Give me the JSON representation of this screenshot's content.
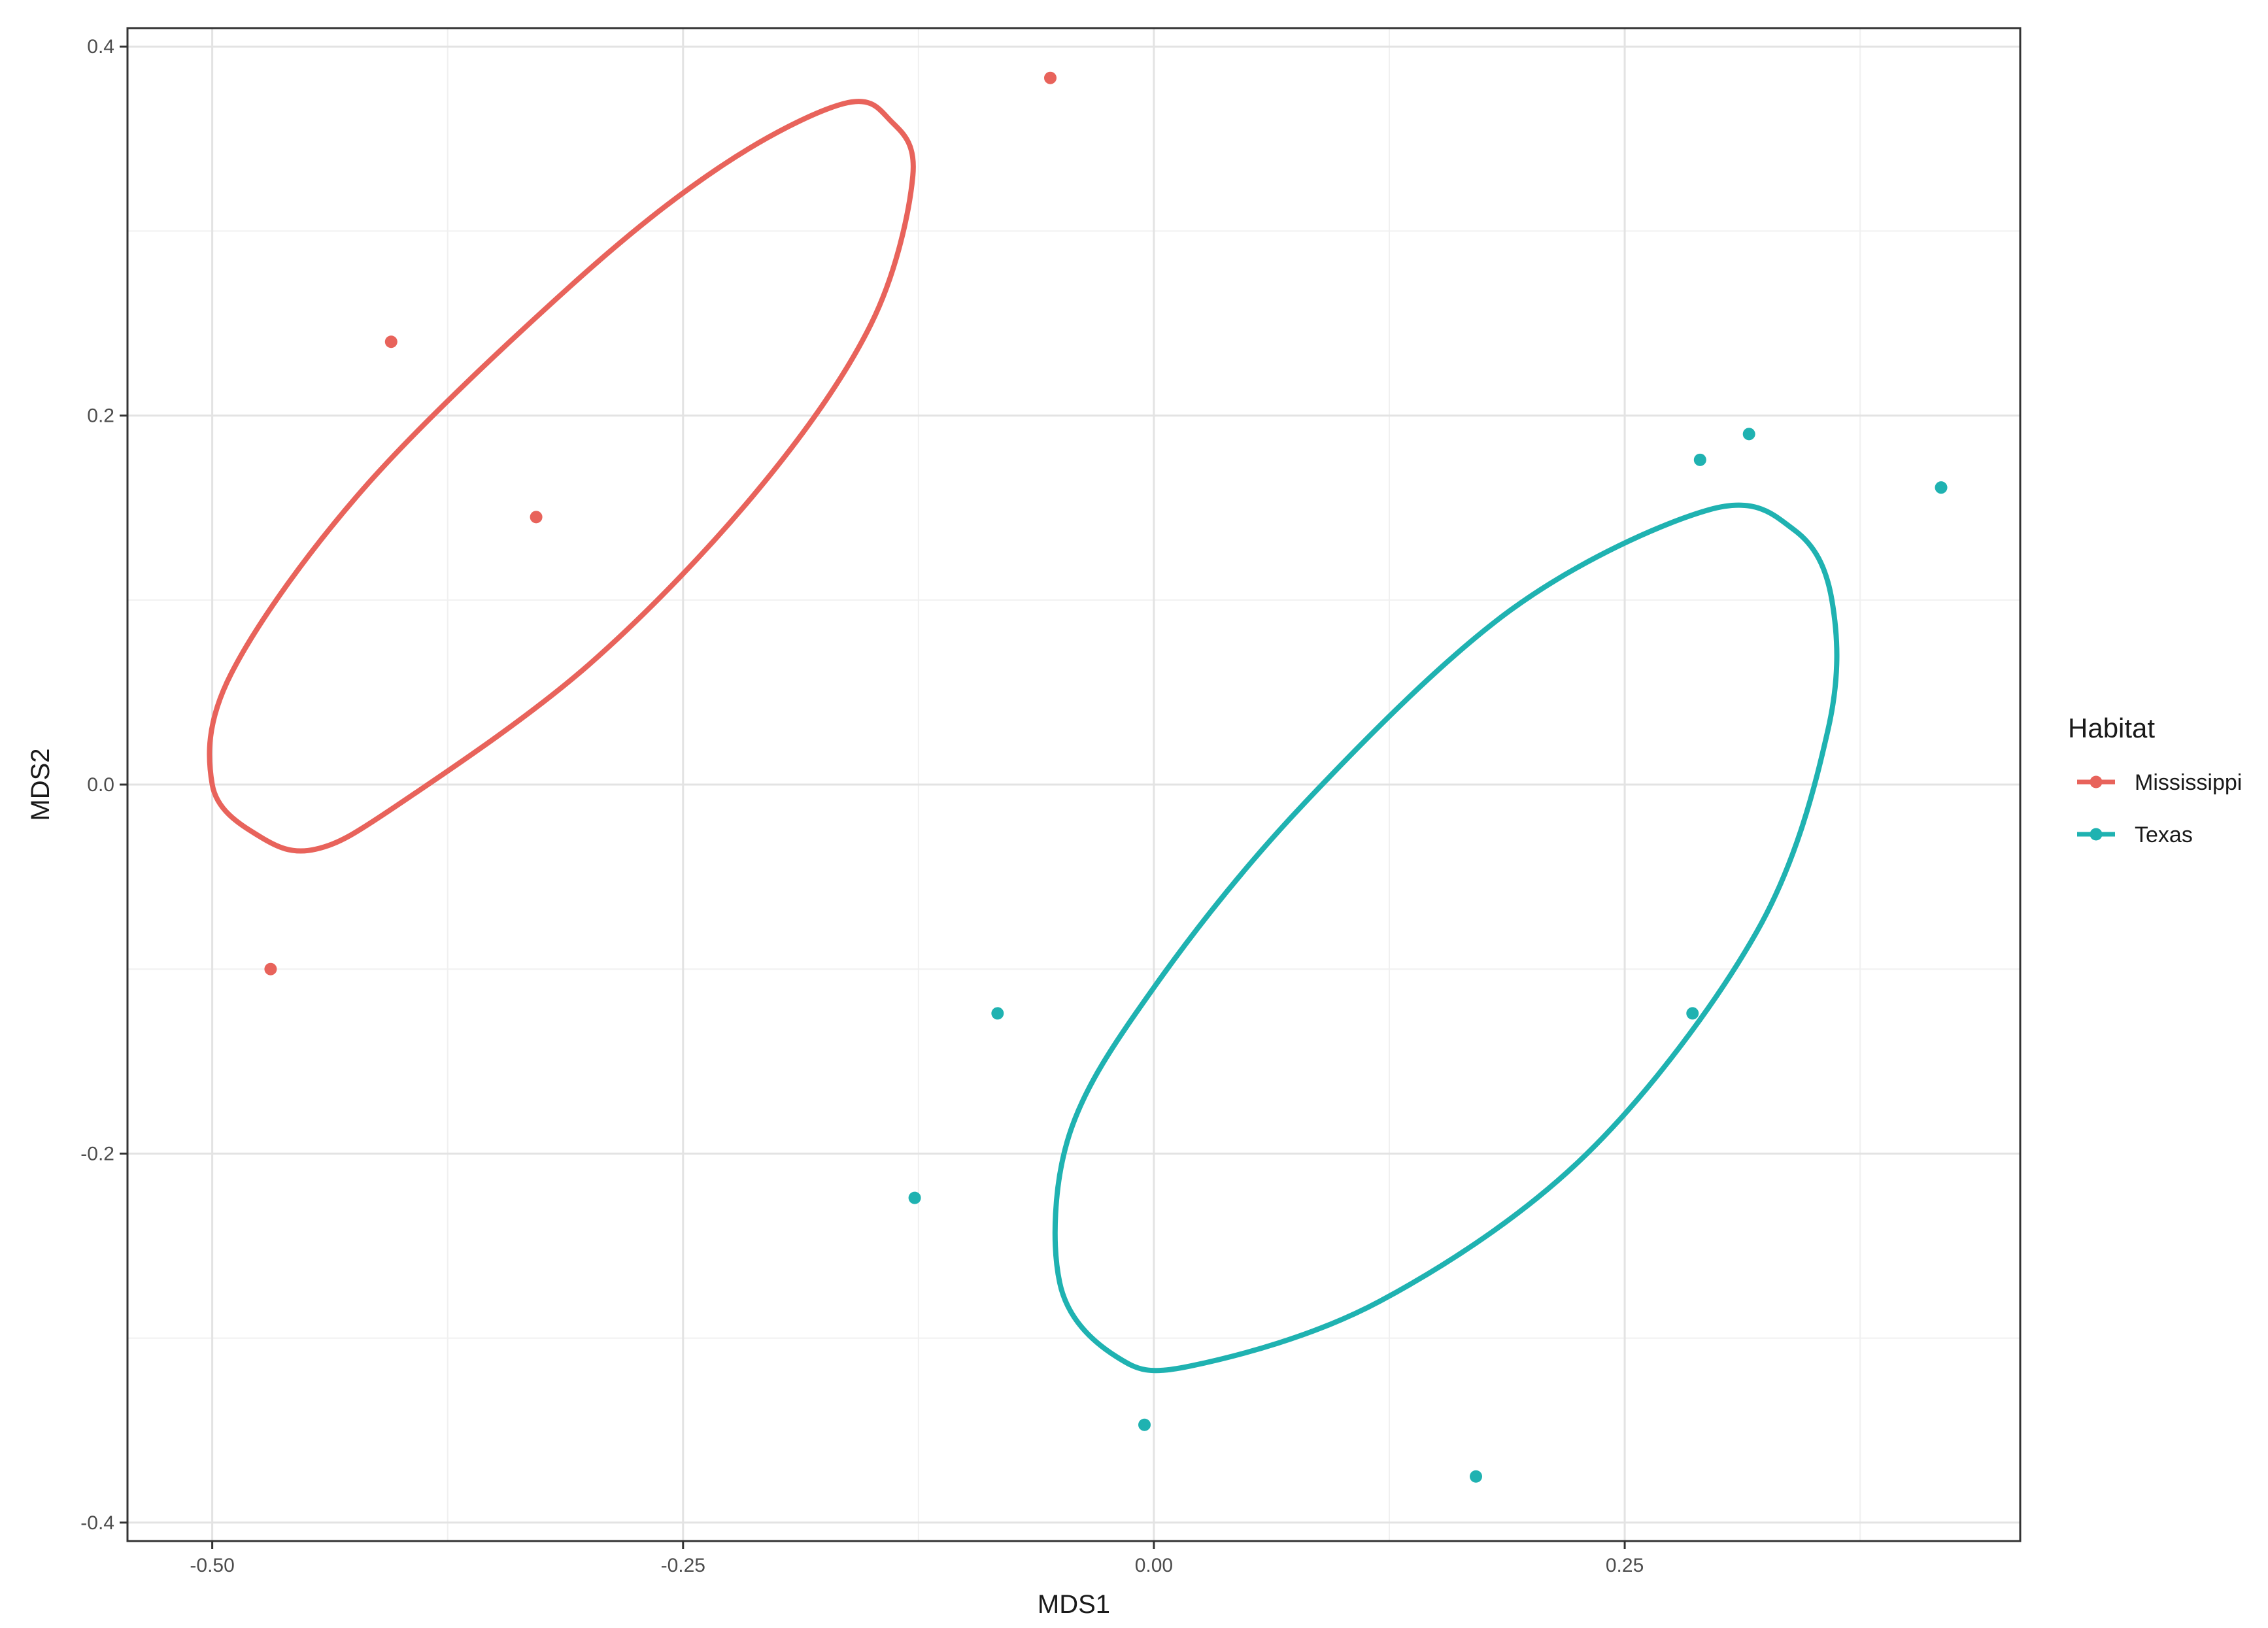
{
  "chart_data": {
    "type": "scatter",
    "xlabel": "MDS1",
    "ylabel": "MDS2",
    "xlim": [
      -0.545,
      0.46
    ],
    "ylim": [
      -0.41,
      0.41
    ],
    "x_ticks": [
      -0.5,
      -0.25,
      0.0,
      0.25
    ],
    "x_tick_labels": [
      "-0.50",
      "-0.25",
      "0.00",
      "0.25"
    ],
    "y_ticks": [
      -0.4,
      -0.2,
      0.0,
      0.2,
      0.4
    ],
    "y_tick_labels": [
      "-0.4",
      "-0.2",
      "0.0",
      "0.2",
      "0.4"
    ],
    "grid": true,
    "legend": {
      "title": "Habitat",
      "placement": "right"
    },
    "series": [
      {
        "name": "Mississippi",
        "color": "#E8635B",
        "points": [
          {
            "x": -0.055,
            "y": 0.383
          },
          {
            "x": -0.405,
            "y": 0.24
          },
          {
            "x": -0.328,
            "y": 0.145
          },
          {
            "x": -0.469,
            "y": -0.1
          }
        ],
        "ellipse": [
          [
            -0.165,
            0.369
          ],
          [
            -0.14,
            0.36
          ],
          [
            -0.128,
            0.33
          ],
          [
            -0.15,
            0.25
          ],
          [
            -0.21,
            0.16
          ],
          [
            -0.3,
            0.065
          ],
          [
            -0.4,
            -0.01
          ],
          [
            -0.445,
            -0.035
          ],
          [
            -0.475,
            -0.028
          ],
          [
            -0.5,
            0.0
          ],
          [
            -0.49,
            0.06
          ],
          [
            -0.42,
            0.16
          ],
          [
            -0.31,
            0.27
          ],
          [
            -0.23,
            0.335
          ],
          [
            -0.165,
            0.369
          ]
        ]
      },
      {
        "name": "Texas",
        "color": "#1FB2B1",
        "points": [
          {
            "x": 0.29,
            "y": 0.176
          },
          {
            "x": 0.316,
            "y": 0.19
          },
          {
            "x": 0.418,
            "y": 0.161
          },
          {
            "x": 0.286,
            "y": -0.124
          },
          {
            "x": -0.083,
            "y": -0.124
          },
          {
            "x": -0.127,
            "y": -0.224
          },
          {
            "x": -0.005,
            "y": -0.347
          },
          {
            "x": 0.171,
            "y": -0.375
          }
        ],
        "ellipse": [
          [
            0.295,
            0.149
          ],
          [
            0.34,
            0.138
          ],
          [
            0.36,
            0.1
          ],
          [
            0.358,
            0.03
          ],
          [
            0.32,
            -0.08
          ],
          [
            0.23,
            -0.2
          ],
          [
            0.12,
            -0.28
          ],
          [
            0.02,
            -0.315
          ],
          [
            -0.02,
            -0.31
          ],
          [
            -0.05,
            -0.27
          ],
          [
            -0.045,
            -0.19
          ],
          [
            0.0,
            -0.11
          ],
          [
            0.08,
            -0.01
          ],
          [
            0.19,
            0.095
          ],
          [
            0.295,
            0.149
          ]
        ]
      }
    ]
  }
}
